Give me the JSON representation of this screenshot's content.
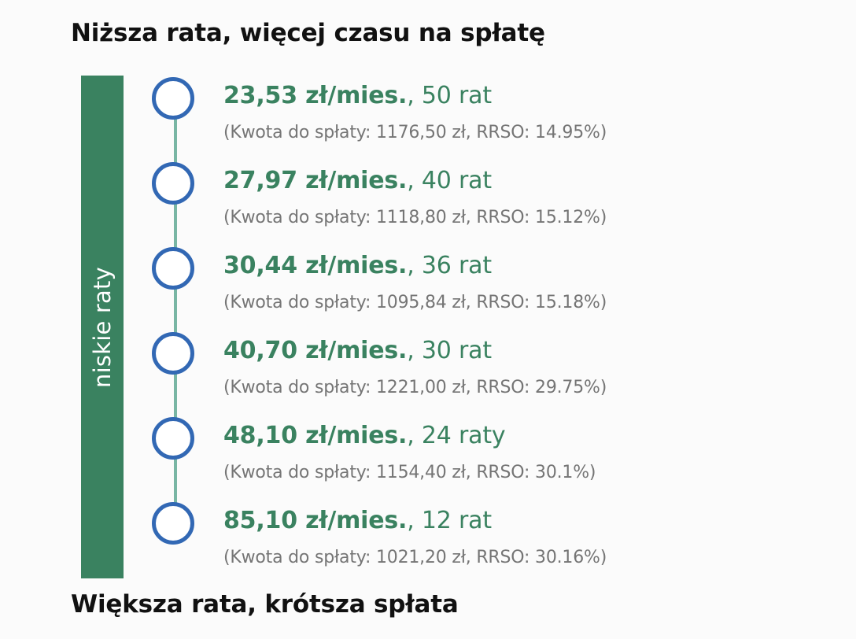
{
  "header": {
    "title": "Niższa rata, więcej czasu na spłatę"
  },
  "footer": {
    "title": "Większa rata, krótsza spłata"
  },
  "sidebar": {
    "label": "niskie raty",
    "color": "#3a8260"
  },
  "colors": {
    "circle_border": "#3268b4",
    "connector": "#79b6a4",
    "primary_text": "#3a8260",
    "secondary_text": "#757575"
  },
  "options": [
    {
      "rate": "23,53 zł/mies.",
      "installments": ", 50 rat",
      "details": "(Kwota do spłaty: 1176,50 zł, RRSO: 14.95%)"
    },
    {
      "rate": "27,97 zł/mies.",
      "installments": ", 40 rat",
      "details": "(Kwota do spłaty: 1118,80 zł, RRSO: 15.12%)"
    },
    {
      "rate": "30,44 zł/mies.",
      "installments": ", 36 rat",
      "details": "(Kwota do spłaty: 1095,84 zł, RRSO: 15.18%)"
    },
    {
      "rate": "40,70 zł/mies.",
      "installments": ", 30 rat",
      "details": "(Kwota do spłaty: 1221,00 zł, RRSO: 29.75%)"
    },
    {
      "rate": "48,10 zł/mies.",
      "installments": ", 24 raty",
      "details": "(Kwota do spłaty: 1154,40 zł, RRSO: 30.1%)"
    },
    {
      "rate": "85,10 zł/mies.",
      "installments": ", 12 rat",
      "details": "(Kwota do spłaty: 1021,20 zł, RRSO: 30.16%)"
    }
  ]
}
